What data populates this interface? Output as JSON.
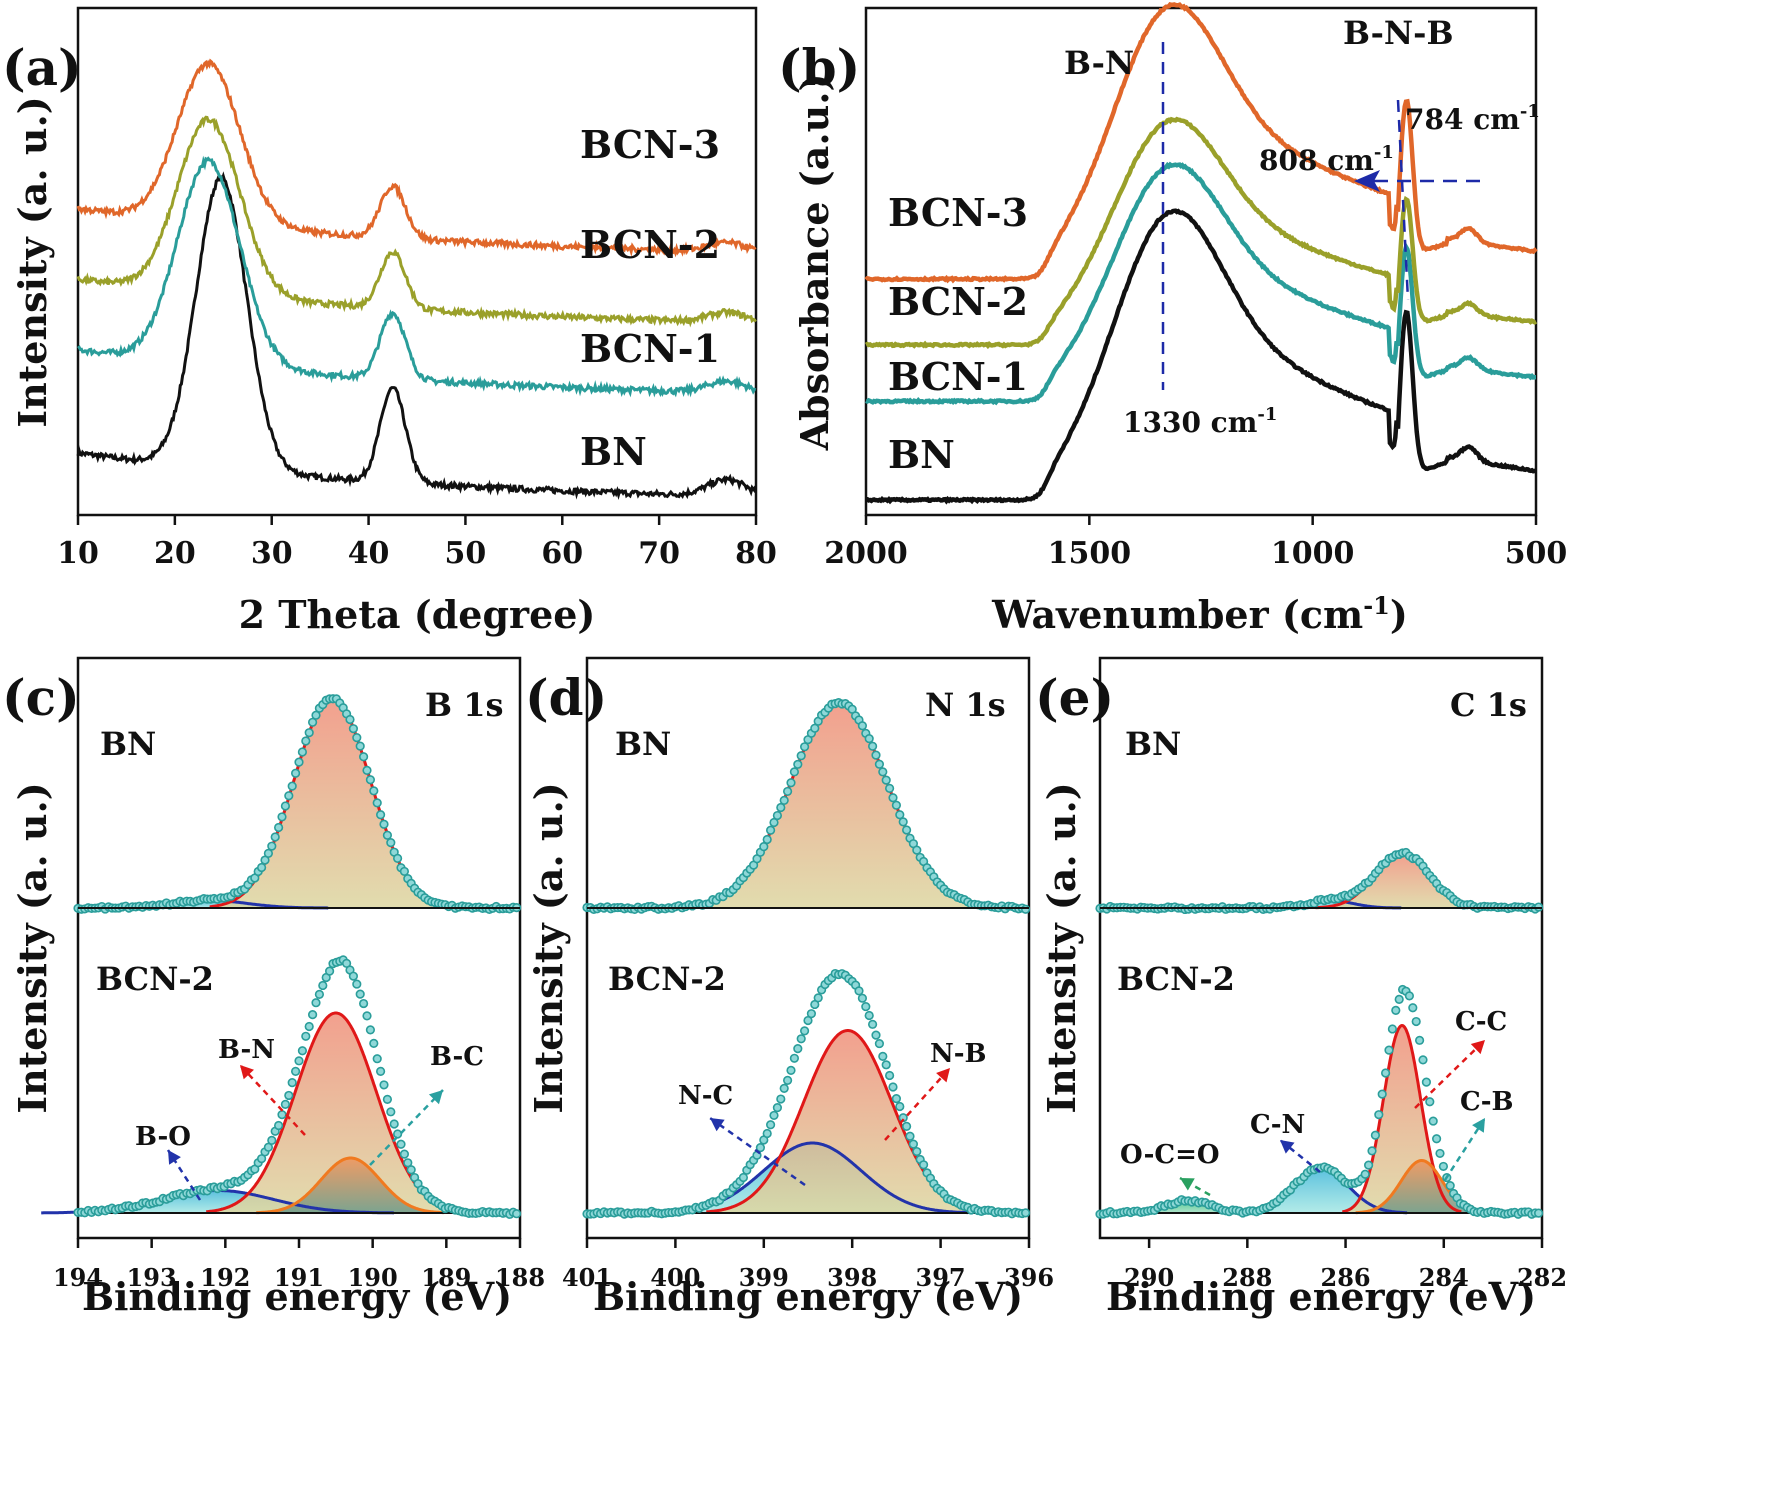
{
  "chart_data": [
    {
      "panel": "(a)",
      "type": "line",
      "xlabel": "2 Theta (degree)",
      "ylabel": "Intensity (a. u.)",
      "xlim": [
        10,
        80
      ],
      "xticks": [
        "10",
        "20",
        "30",
        "40",
        "50",
        "60",
        "70",
        "80"
      ],
      "series": [
        {
          "name": "BN",
          "color": "#111111",
          "offset": 0.0,
          "scale": 1.0
        },
        {
          "name": "BCN-1",
          "color": "#2a9d9a",
          "offset": 0.22,
          "scale": 0.7
        },
        {
          "name": "BCN-2",
          "color": "#9aa02a",
          "offset": 0.37,
          "scale": 0.6
        },
        {
          "name": "BCN-3",
          "color": "#e0672a",
          "offset": 0.52,
          "scale": 0.55
        }
      ],
      "peaks_deg": [
        24.5,
        42.5,
        77
      ]
    },
    {
      "panel": "(b)",
      "type": "line",
      "xlabel": "Wavenumber (cm-1)",
      "ylabel": "Absorbance (a.u.)",
      "xlim": [
        2000,
        500
      ],
      "xticks": [
        "2000",
        "1500",
        "1000",
        "500"
      ],
      "series": [
        {
          "name": "BN",
          "color": "#111111",
          "offset": 0.0
        },
        {
          "name": "BCN-1",
          "color": "#2a9d9a",
          "offset": 0.21
        },
        {
          "name": "BCN-2",
          "color": "#9aa02a",
          "offset": 0.33
        },
        {
          "name": "BCN-3",
          "color": "#e0672a",
          "offset": 0.47
        }
      ],
      "annotations": {
        "bn": "B-N",
        "bnb": "B-N-B",
        "peak1330_num": "1330 cm",
        "peak808_num": "808 cm",
        "peak784_num": "784 cm",
        "sup": "-1"
      }
    },
    {
      "panel": "(c)",
      "type": "line",
      "title": "B 1s",
      "xlabel": "Binding energy (eV)",
      "ylabel": "Intensity (a. u.)",
      "xlim": [
        194,
        188
      ],
      "xticks": [
        "194",
        "193",
        "192",
        "191",
        "190",
        "189",
        "188"
      ],
      "samples": [
        "BN",
        "BCN-2"
      ],
      "components": [
        "B-N",
        "B-C",
        "B-O"
      ]
    },
    {
      "panel": "(d)",
      "type": "line",
      "title": "N 1s",
      "xlabel": "Binding energy (eV)",
      "ylabel": "Intensity (a. u.)",
      "xlim": [
        401,
        396
      ],
      "xticks": [
        "401",
        "400",
        "399",
        "398",
        "397",
        "396"
      ],
      "samples": [
        "BN",
        "BCN-2"
      ],
      "components": [
        "N-B",
        "N-C"
      ]
    },
    {
      "panel": "(e)",
      "type": "line",
      "title": "C 1s",
      "xlabel": "Binding energy (eV)",
      "ylabel": "Intensity (a. u.)",
      "xlim": [
        291,
        282
      ],
      "xticks": [
        "290",
        "288",
        "286",
        "284",
        "282"
      ],
      "samples": [
        "BN",
        "BCN-2"
      ],
      "components": [
        "C-C",
        "C-B",
        "C-N",
        "O-C=O"
      ]
    }
  ]
}
